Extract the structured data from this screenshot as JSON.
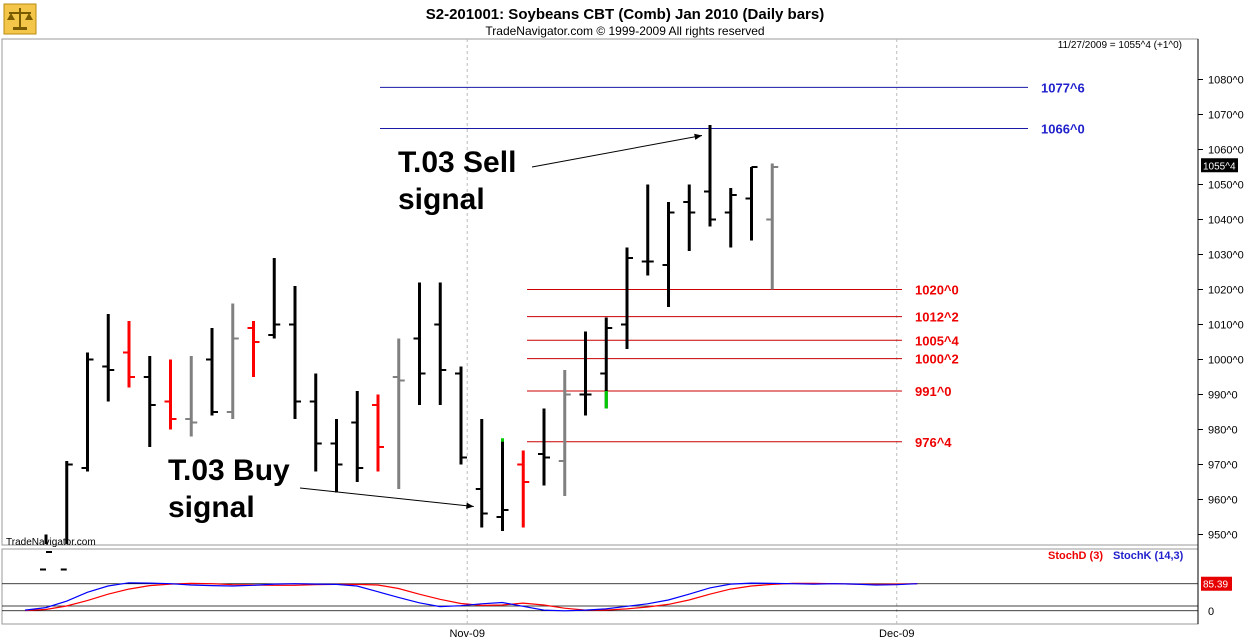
{
  "header": {
    "title": "S2-201001:  Soybeans CBT (Comb) Jan 2010  (Daily bars)",
    "subtitle": "TradeNavigator.com © 1999-2009 All rights reserved",
    "info": "11/27/2009 = 1055^4 (+1^0)",
    "watermark": "TradeNavigator.com",
    "logo_icon": "scale-logo-icon"
  },
  "chart_data": [
    {
      "type": "ohlc",
      "title": "S2-201001:  Soybeans CBT (Comb) Jan 2010  (Daily bars)",
      "ylim": [
        942,
        1090
      ],
      "y_ticks": [
        950,
        960,
        970,
        980,
        990,
        1000,
        1010,
        1020,
        1030,
        1040,
        1050,
        1060,
        1070,
        1080
      ],
      "y_tick_labels": [
        "950^0",
        "960^0",
        "970^0",
        "980^0",
        "990^0",
        "1000^0",
        "1010^0",
        "1020^0",
        "1030^0",
        "1040^0",
        "1050^0",
        "1060^0",
        "1070^0",
        "1080^0"
      ],
      "x_labels": [
        {
          "label": "Nov-09",
          "bar": 20.3
        },
        {
          "label": "Dec-09",
          "bar": 41.0
        }
      ],
      "colors": {
        "up": "#000000",
        "down_red": "#ff0000",
        "neutral": "#808080",
        "signal": "#00cc00"
      },
      "bars": [
        {
          "o": 940,
          "h": 950,
          "l": 940,
          "c": 945,
          "color": "black"
        },
        {
          "o": 940,
          "h": 971,
          "l": 940,
          "c": 970,
          "color": "black"
        },
        {
          "o": 969,
          "h": 1002,
          "l": 968,
          "c": 1000,
          "color": "black"
        },
        {
          "o": 998,
          "h": 1013,
          "l": 988,
          "c": 997,
          "color": "black"
        },
        {
          "o": 1002,
          "h": 1011,
          "l": 992,
          "c": 995,
          "color": "red"
        },
        {
          "o": 995,
          "h": 1001,
          "l": 975,
          "c": 987,
          "color": "black"
        },
        {
          "o": 988,
          "h": 1000,
          "l": 980,
          "c": 983,
          "color": "red"
        },
        {
          "o": 983,
          "h": 1001,
          "l": 978,
          "c": 982,
          "color": "gray"
        },
        {
          "o": 1000,
          "h": 1009,
          "l": 984,
          "c": 985,
          "color": "black"
        },
        {
          "o": 985,
          "h": 1016,
          "l": 983,
          "c": 1006,
          "color": "gray"
        },
        {
          "o": 1009,
          "h": 1011,
          "l": 995,
          "c": 1005,
          "color": "red"
        },
        {
          "o": 1007,
          "h": 1029,
          "l": 1006,
          "c": 1010,
          "color": "black"
        },
        {
          "o": 1010,
          "h": 1021,
          "l": 983,
          "c": 988,
          "color": "black"
        },
        {
          "o": 988,
          "h": 996,
          "l": 968,
          "c": 976,
          "color": "black"
        },
        {
          "o": 976,
          "h": 983,
          "l": 962,
          "c": 970,
          "color": "black"
        },
        {
          "o": 982,
          "h": 991,
          "l": 965,
          "c": 969,
          "color": "black"
        },
        {
          "o": 987,
          "h": 990,
          "l": 968,
          "c": 975,
          "color": "red"
        },
        {
          "o": 995,
          "h": 1006,
          "l": 963,
          "c": 994,
          "color": "gray"
        },
        {
          "o": 1006,
          "h": 1022,
          "l": 987,
          "c": 996,
          "color": "black"
        },
        {
          "o": 1010,
          "h": 1022,
          "l": 987,
          "c": 997,
          "color": "black"
        },
        {
          "o": 996,
          "h": 998,
          "l": 970,
          "c": 972,
          "color": "black"
        },
        {
          "o": 963,
          "h": 983,
          "l": 952,
          "c": 956,
          "color": "black"
        },
        {
          "o": 955,
          "h": 977,
          "l": 951,
          "c": 957,
          "color": "black"
        },
        {
          "o": 970,
          "h": 974,
          "l": 952,
          "c": 965,
          "color": "red"
        },
        {
          "o": 973,
          "h": 986,
          "l": 964,
          "c": 972,
          "color": "black"
        },
        {
          "o": 971,
          "h": 997,
          "l": 961,
          "c": 990,
          "color": "gray"
        },
        {
          "o": 990,
          "h": 1008,
          "l": 984,
          "c": 990,
          "color": "black"
        },
        {
          "o": 996,
          "h": 1012,
          "l": 986,
          "c": 1009,
          "color": "black"
        },
        {
          "o": 1010,
          "h": 1032,
          "l": 1003,
          "c": 1029,
          "color": "black"
        },
        {
          "o": 1028,
          "h": 1050,
          "l": 1024,
          "c": 1028,
          "color": "black"
        },
        {
          "o": 1027,
          "h": 1045,
          "l": 1015,
          "c": 1042,
          "color": "black"
        },
        {
          "o": 1045,
          "h": 1050,
          "l": 1031,
          "c": 1042,
          "color": "black"
        },
        {
          "o": 1048,
          "h": 1067,
          "l": 1038,
          "c": 1040,
          "color": "black"
        },
        {
          "o": 1042,
          "h": 1049,
          "l": 1032,
          "c": 1047,
          "color": "black"
        },
        {
          "o": 1046,
          "h": 1055,
          "l": 1034,
          "c": 1055,
          "color": "black"
        },
        {
          "o": 1040,
          "h": 1056,
          "l": 1020,
          "c": 1055,
          "color": "gray"
        }
      ],
      "signal_marks": [
        {
          "bar": 22,
          "from": 976.5,
          "to": 977.5
        },
        {
          "bar": 27,
          "from": 986,
          "to": 991
        }
      ],
      "levels": {
        "blue": [
          {
            "label": "1077^6",
            "value": 1077.75
          },
          {
            "label": "1066^0",
            "value": 1066
          }
        ],
        "red": [
          {
            "label": "1020^0",
            "value": 1020
          },
          {
            "label": "1012^2",
            "value": 1012.25
          },
          {
            "label": "1005^4",
            "value": 1005.5
          },
          {
            "label": "1000^2",
            "value": 1000.25
          },
          {
            "label": "991^0",
            "value": 991
          },
          {
            "label": "976^4",
            "value": 976.5
          }
        ]
      },
      "last_price": {
        "label": "1055^4",
        "value": 1055.5
      },
      "annotations": [
        {
          "text_lines": [
            "T.03 Sell",
            "signal"
          ],
          "points_to_bar": 32,
          "points_to_price": 1064
        },
        {
          "text_lines": [
            "T.03 Buy",
            "signal"
          ],
          "points_to_bar": 21,
          "points_to_price": 958
        }
      ]
    },
    {
      "type": "line",
      "indicator": "stochastic",
      "ylim": [
        -5,
        112
      ],
      "reference_lines": [
        0,
        15,
        85
      ],
      "y_tick_labels": [
        "0"
      ],
      "series": [
        {
          "name": "StochD (3)",
          "color": "#ff0000",
          "values": [
            1,
            4,
            15,
            32,
            52,
            68,
            79,
            84,
            86,
            85,
            82,
            81,
            80,
            80,
            82,
            83,
            83,
            81,
            70,
            52,
            36,
            23,
            17,
            18,
            24,
            18,
            8,
            2,
            2,
            6,
            12,
            20,
            34,
            52,
            68,
            78,
            83,
            86,
            86,
            85,
            84,
            83,
            84,
            85
          ]
        },
        {
          "name": "StochK (14,3)",
          "color": "#0000ff",
          "values": [
            2,
            10,
            30,
            58,
            78,
            88,
            87,
            85,
            81,
            79,
            78,
            80,
            84,
            85,
            84,
            83,
            78,
            60,
            42,
            25,
            13,
            16,
            22,
            26,
            14,
            2,
            0,
            2,
            6,
            14,
            22,
            34,
            52,
            72,
            84,
            87,
            86,
            85,
            84,
            85,
            84,
            81,
            82,
            85
          ]
        }
      ],
      "last_value_label": "85.39"
    }
  ]
}
